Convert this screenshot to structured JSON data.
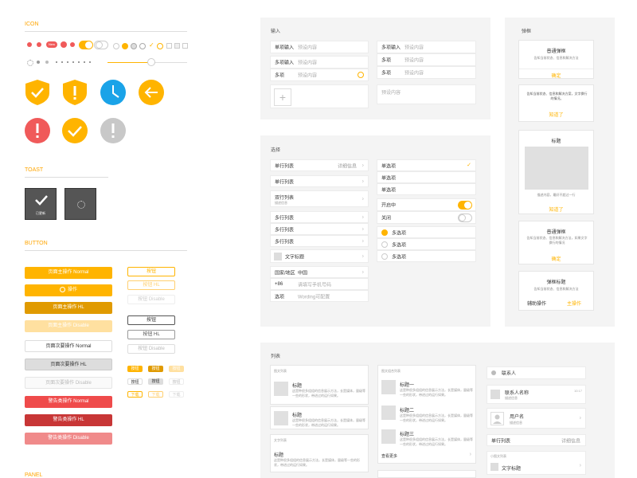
{
  "colors": {
    "accent": "#ffb400",
    "blue": "#1aa3e8",
    "red": "#f05a5a",
    "gray": "#c8c8c8"
  },
  "left": {
    "icon_title": "ICON",
    "toast_title": "TOAST",
    "toast_label": "已更新",
    "button_title": "BUTTON",
    "badge_new": "New",
    "primary_buttons": [
      "页面主操作 Normal",
      "操作",
      "页面主操作 HL",
      "页面主操作 Disable",
      "页面次要操作 Normal",
      "页面次要操作 HL",
      "页面次要操作 Disable",
      "警告类操作 Normal",
      "警告类操作 HL",
      "警告类操作 Disable"
    ],
    "outline_buttons": [
      "按钮",
      "按钮 HL",
      "按钮 Disable",
      "按钮",
      "按钮 HL",
      "按钮 Disable"
    ],
    "mini_buttons": [
      "按钮",
      "按钮",
      "按钮",
      "按钮",
      "按钮",
      "按钮",
      "下载",
      "下载",
      "下载"
    ],
    "bottom_title": "PANEL"
  },
  "input": {
    "title": "输入",
    "left_rows": [
      {
        "label": "单项输入",
        "placeholder": "预设内容"
      },
      {
        "label": "多项输入",
        "placeholder": "预设内容"
      },
      {
        "label": "多项",
        "placeholder": "预设内容"
      }
    ],
    "right_rows": [
      {
        "label": "多项输入",
        "placeholder": "预设内容"
      },
      {
        "label": "多项",
        "placeholder": "预设内容"
      },
      {
        "label": "多项",
        "placeholder": "预设内容"
      }
    ],
    "textarea_placeholder": "预设内容",
    "plus": "+"
  },
  "dialog": {
    "title": "弹框",
    "d1_title": "普通弹框",
    "d1_desc": "告知当前状态、信息和解决方法",
    "d1_btn": "确定",
    "d2_desc": "告知当前状态、信息和解决方案，文字换行的情况。",
    "d2_btn": "知道了",
    "d3_title": "标题",
    "d3_desc": "描述内容，最好不超过一行",
    "d3_btn": "知道了",
    "d4_title": "普通弹框",
    "d4_desc": "告知当前状态、信息和解决方法，如果文字换行的情况",
    "d4_btn": "确定",
    "d5_title": "弹框标题",
    "d5_desc": "告知当前状态、信息和解决方法",
    "d5_btn1": "辅助操作",
    "d5_btn2": "主操作"
  },
  "select": {
    "title": "选择",
    "rows": [
      {
        "label": "单行列表",
        "right": "详细信息"
      },
      {
        "label": "单行列表",
        "right": ""
      },
      {
        "label": "双行列表",
        "sub": "描述信息",
        "right": ""
      },
      {
        "label": "多行列表",
        "right": ""
      },
      {
        "label": "多行列表",
        "right": ""
      },
      {
        "label": "多行列表",
        "right": ""
      },
      {
        "label": "文字标题",
        "right": ""
      }
    ],
    "country_label": "国家/地区",
    "country_value": "中国",
    "phone_code": "+86",
    "phone_placeholder": "请填写手机号码",
    "option_label": "选项",
    "option_placeholder": "Wording可配置",
    "single": [
      "单选项",
      "单选项",
      "单选项"
    ],
    "switch_on": "开启中",
    "switch_off": "关闭",
    "multi": [
      "多选项",
      "多选项",
      "多选项"
    ]
  },
  "list": {
    "title": "列表",
    "col1_header": "图文列表",
    "item_title": "标题",
    "item_desc": "这是种很多组组的信息展示方法，长是媒体，量级等一些的形状，带进过的运行如果。",
    "col1_text_header": "文字列表",
    "col2_header": "图文组合列表",
    "col2_items": [
      "标题一",
      "标题二",
      "标题三"
    ],
    "view_more": "查看更多",
    "col3_contacts": "联系人",
    "col3_contact_name": "联系人名称",
    "col3_contact_sub": "描述信息",
    "col3_time": "10:17",
    "col3_username": "用户名",
    "col3_user_sub": "描述信息",
    "col3_single": "单行列表",
    "col3_single_right": "详细信息",
    "col3_small_header": "小图文列表",
    "col3_text_title": "文字标题"
  }
}
